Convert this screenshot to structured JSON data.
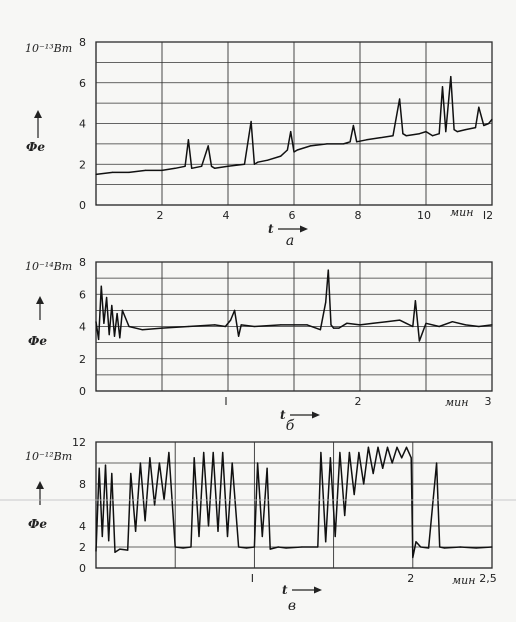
{
  "chart_data": [
    {
      "type": "line",
      "panel_label": "а",
      "unit_label": "10⁻¹³Вт",
      "ylabel": "Фe",
      "xlabel": "t",
      "x_unit": "мин",
      "xlim": [
        0,
        12
      ],
      "ylim": [
        0,
        8
      ],
      "x_ticks": [
        {
          "value": 2,
          "label": "2"
        },
        {
          "value": 4,
          "label": "4"
        },
        {
          "value": 6,
          "label": "6"
        },
        {
          "value": 8,
          "label": "8"
        },
        {
          "value": 10,
          "label": "10"
        },
        {
          "value": 12,
          "label": "I2"
        }
      ],
      "y_ticks": [
        {
          "value": 0,
          "label": "0"
        },
        {
          "value": 2,
          "label": "2"
        },
        {
          "value": 4,
          "label": "4"
        },
        {
          "value": 6,
          "label": "6"
        },
        {
          "value": 8,
          "label": "8"
        }
      ],
      "x_grid": [
        2,
        4,
        6,
        8,
        10,
        12
      ],
      "y_grid": [
        1,
        2,
        3,
        4,
        5,
        6,
        7,
        8
      ],
      "series": [
        {
          "x": [
            0,
            0.5,
            1,
            1.5,
            2,
            2.4,
            2.7,
            2.8,
            2.9,
            3.2,
            3.4,
            3.5,
            3.6,
            4,
            4.5,
            4.7,
            4.8,
            4.9,
            5.2,
            5.6,
            5.8,
            5.9,
            6,
            6.1,
            6.5,
            7,
            7.5,
            7.7,
            7.8,
            7.9,
            8.2,
            8.6,
            9,
            9.2,
            9.3,
            9.4,
            9.8,
            10,
            10.2,
            10.4,
            10.5,
            10.6,
            10.75,
            10.85,
            10.95,
            11.2,
            11.5,
            11.6,
            11.75,
            11.9,
            12
          ],
          "y": [
            1.5,
            1.6,
            1.6,
            1.7,
            1.7,
            1.8,
            1.9,
            3.2,
            1.8,
            1.9,
            2.9,
            1.9,
            1.8,
            1.9,
            2.0,
            4.1,
            2.0,
            2.1,
            2.2,
            2.4,
            2.7,
            3.6,
            2.6,
            2.7,
            2.9,
            3.0,
            3.0,
            3.1,
            3.9,
            3.1,
            3.2,
            3.3,
            3.4,
            5.2,
            3.5,
            3.4,
            3.5,
            3.6,
            3.4,
            3.5,
            5.8,
            3.6,
            6.3,
            3.7,
            3.6,
            3.7,
            3.8,
            4.8,
            3.9,
            4.0,
            4.2
          ]
        }
      ]
    },
    {
      "type": "line",
      "panel_label": "б",
      "unit_label": "10⁻¹⁴Вт",
      "ylabel": "Фe",
      "xlabel": "t",
      "x_unit": "мин",
      "xlim": [
        0,
        3
      ],
      "ylim": [
        0,
        8
      ],
      "x_ticks": [
        {
          "value": 1,
          "label": "I"
        },
        {
          "value": 2,
          "label": "2"
        },
        {
          "value": 3,
          "label": "3"
        }
      ],
      "y_ticks": [
        {
          "value": 0,
          "label": "0"
        },
        {
          "value": 2,
          "label": "2"
        },
        {
          "value": 4,
          "label": "4"
        },
        {
          "value": 6,
          "label": "6"
        },
        {
          "value": 8,
          "label": "8"
        }
      ],
      "x_grid": [
        0.5,
        1,
        1.5,
        2,
        2.5,
        3
      ],
      "y_grid": [
        1,
        2,
        3,
        4,
        5,
        6,
        7,
        8
      ],
      "series": [
        {
          "x": [
            0,
            0.02,
            0.04,
            0.06,
            0.08,
            0.1,
            0.12,
            0.14,
            0.16,
            0.18,
            0.2,
            0.25,
            0.35,
            0.5,
            0.7,
            0.9,
            0.98,
            1.02,
            1.05,
            1.08,
            1.1,
            1.2,
            1.4,
            1.6,
            1.7,
            1.74,
            1.76,
            1.78,
            1.8,
            1.84,
            1.9,
            2.0,
            2.1,
            2.2,
            2.3,
            2.35,
            2.4,
            2.42,
            2.45,
            2.5,
            2.6,
            2.7,
            2.8,
            2.9,
            3.0
          ],
          "y": [
            4.3,
            3.2,
            6.5,
            4.2,
            5.8,
            3.5,
            5.3,
            3.4,
            4.8,
            3.3,
            5.0,
            4.0,
            3.8,
            3.9,
            4.0,
            4.1,
            4.0,
            4.4,
            5.0,
            3.4,
            4.1,
            4.0,
            4.1,
            4.1,
            3.8,
            5.5,
            7.5,
            4.1,
            3.9,
            3.9,
            4.2,
            4.1,
            4.2,
            4.3,
            4.4,
            4.2,
            4.0,
            5.6,
            3.1,
            4.2,
            4.0,
            4.3,
            4.1,
            4.0,
            4.1
          ]
        }
      ]
    },
    {
      "type": "line",
      "panel_label": "в",
      "unit_label": "10⁻¹²Вт",
      "ylabel": "Фe",
      "xlabel": "t",
      "x_unit": "мин",
      "xlim": [
        0,
        2.5
      ],
      "ylim": [
        0,
        12
      ],
      "x_ticks": [
        {
          "value": 1,
          "label": "I"
        },
        {
          "value": 2,
          "label": "2"
        },
        {
          "value": 2.5,
          "label": "2,5"
        }
      ],
      "y_ticks": [
        {
          "value": 0,
          "label": "0"
        },
        {
          "value": 2,
          "label": "2"
        },
        {
          "value": 4,
          "label": "4"
        },
        {
          "value": 8,
          "label": "8"
        },
        {
          "value": 12,
          "label": "12"
        }
      ],
      "x_grid": [
        0.5,
        1,
        1.5,
        2,
        2.5
      ],
      "y_grid": [
        2,
        4,
        6,
        8,
        10,
        12
      ],
      "series": [
        {
          "x": [
            0,
            0.02,
            0.04,
            0.06,
            0.08,
            0.1,
            0.12,
            0.15,
            0.2,
            0.22,
            0.25,
            0.28,
            0.31,
            0.34,
            0.37,
            0.4,
            0.43,
            0.46,
            0.5,
            0.55,
            0.6,
            0.62,
            0.65,
            0.68,
            0.71,
            0.74,
            0.77,
            0.8,
            0.83,
            0.86,
            0.9,
            0.95,
            1.0,
            1.02,
            1.05,
            1.08,
            1.1,
            1.15,
            1.2,
            1.3,
            1.4,
            1.42,
            1.45,
            1.48,
            1.51,
            1.54,
            1.57,
            1.6,
            1.63,
            1.66,
            1.69,
            1.72,
            1.75,
            1.78,
            1.81,
            1.84,
            1.87,
            1.9,
            1.93,
            1.96,
            1.99,
            2.0,
            2.02,
            2.05,
            2.1,
            2.15,
            2.17,
            2.2,
            2.3,
            2.4,
            2.5
          ],
          "y": [
            1.6,
            9.5,
            3.0,
            9.8,
            2.6,
            9.0,
            1.5,
            1.8,
            1.7,
            9.0,
            3.5,
            10.0,
            4.5,
            10.5,
            6.0,
            10.0,
            6.5,
            11.0,
            2.0,
            1.9,
            2.0,
            10.5,
            3.0,
            11.0,
            4.0,
            11.0,
            3.5,
            11.0,
            3.0,
            10.0,
            2.0,
            1.9,
            2.0,
            10.0,
            3.0,
            9.5,
            1.8,
            2.0,
            1.9,
            2.0,
            2.0,
            11.0,
            2.5,
            10.5,
            3.0,
            11.0,
            5.0,
            11.0,
            7.0,
            11.0,
            8.0,
            11.5,
            9.0,
            11.5,
            9.5,
            11.5,
            10.0,
            11.5,
            10.5,
            11.5,
            10.5,
            1.0,
            2.5,
            2.0,
            1.9,
            10.0,
            2.0,
            1.9,
            2.0,
            1.9,
            2.0
          ]
        }
      ]
    }
  ]
}
